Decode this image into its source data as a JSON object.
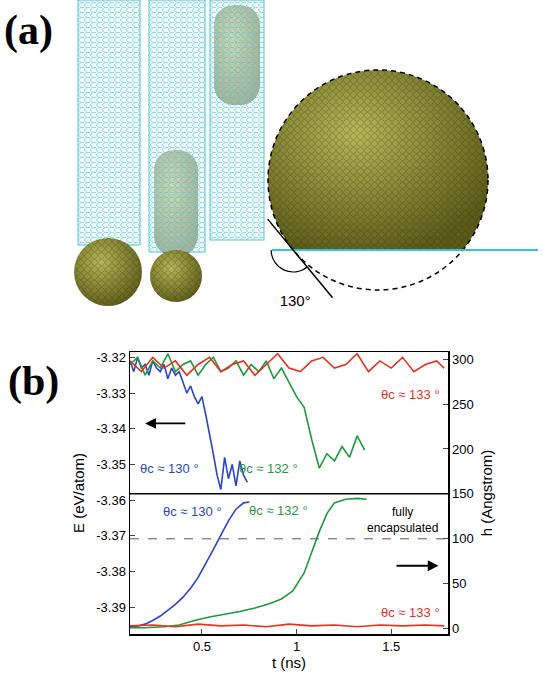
{
  "panel_a": {
    "label": "(a)",
    "angle_label": "130°"
  },
  "chart_data": {
    "type": "line",
    "panel_label": "(b)",
    "x_label": "t (ns)",
    "y_label": "E (eV/atom)",
    "y2_label": "h (Angstrom)",
    "xlim": [
      0.12,
      1.8
    ],
    "xticks": [
      0.5,
      1,
      1.5
    ],
    "ylim": [
      -3.3975,
      -3.3185
    ],
    "yticks": [
      -3.39,
      -3.38,
      -3.37,
      -3.36,
      -3.35,
      -3.34,
      -3.33,
      -3.32
    ],
    "y2lim": [
      -6,
      308
    ],
    "y2ticks": [
      0,
      50,
      100,
      150,
      200,
      250,
      300
    ],
    "grid": false,
    "threshold": {
      "text": "fully encapsulated",
      "value": 100,
      "axis": "y2",
      "line_style": "dash"
    },
    "series": [
      {
        "name": "θc ≈ 130 °",
        "color": "#2b45c8",
        "axis": "y",
        "x": [
          0.12,
          0.14,
          0.16,
          0.18,
          0.2,
          0.22,
          0.24,
          0.26,
          0.28,
          0.3,
          0.32,
          0.34,
          0.36,
          0.38,
          0.4,
          0.42,
          0.44,
          0.46,
          0.48,
          0.5,
          0.52,
          0.54,
          0.56,
          0.58,
          0.6,
          0.62,
          0.64,
          0.66,
          0.68,
          0.7,
          0.72,
          0.74
        ],
        "values": [
          -3.321,
          -3.324,
          -3.32,
          -3.323,
          -3.322,
          -3.325,
          -3.321,
          -3.323,
          -3.324,
          -3.322,
          -3.326,
          -3.323,
          -3.325,
          -3.324,
          -3.327,
          -3.33,
          -3.328,
          -3.331,
          -3.333,
          -3.331,
          -3.336,
          -3.341,
          -3.347,
          -3.353,
          -3.357,
          -3.348,
          -3.354,
          -3.35,
          -3.356,
          -3.349,
          -3.353,
          -3.355
        ]
      },
      {
        "name": "θc ≈ 132 °",
        "color": "#1f9a3a",
        "axis": "y",
        "x": [
          0.12,
          0.16,
          0.2,
          0.24,
          0.28,
          0.32,
          0.36,
          0.4,
          0.44,
          0.48,
          0.52,
          0.56,
          0.6,
          0.64,
          0.68,
          0.72,
          0.76,
          0.8,
          0.84,
          0.88,
          0.92,
          0.96,
          1.0,
          1.04,
          1.08,
          1.12,
          1.16,
          1.2,
          1.24,
          1.28,
          1.32,
          1.36
        ],
        "values": [
          -3.322,
          -3.32,
          -3.325,
          -3.321,
          -3.323,
          -3.319,
          -3.324,
          -3.322,
          -3.321,
          -3.325,
          -3.322,
          -3.32,
          -3.324,
          -3.323,
          -3.321,
          -3.325,
          -3.322,
          -3.324,
          -3.321,
          -3.326,
          -3.323,
          -3.327,
          -3.331,
          -3.334,
          -3.343,
          -3.351,
          -3.347,
          -3.349,
          -3.345,
          -3.348,
          -3.342,
          -3.346
        ]
      },
      {
        "name": "θc ≈ 133 °",
        "color": "#e8321e",
        "axis": "y",
        "x": [
          0.12,
          0.18,
          0.24,
          0.3,
          0.36,
          0.42,
          0.48,
          0.54,
          0.6,
          0.66,
          0.72,
          0.78,
          0.84,
          0.9,
          0.96,
          1.02,
          1.08,
          1.14,
          1.2,
          1.26,
          1.32,
          1.38,
          1.44,
          1.5,
          1.56,
          1.62,
          1.68,
          1.74,
          1.78
        ],
        "values": [
          -3.321,
          -3.324,
          -3.32,
          -3.323,
          -3.321,
          -3.325,
          -3.322,
          -3.32,
          -3.324,
          -3.322,
          -3.321,
          -3.325,
          -3.322,
          -3.319,
          -3.323,
          -3.324,
          -3.321,
          -3.32,
          -3.323,
          -3.322,
          -3.319,
          -3.324,
          -3.321,
          -3.323,
          -3.32,
          -3.324,
          -3.322,
          -3.321,
          -3.323
        ]
      },
      {
        "name": "θc ≈ 130 °",
        "color": "#2b45c8",
        "axis": "y2",
        "x": [
          0.12,
          0.16,
          0.2,
          0.24,
          0.28,
          0.32,
          0.36,
          0.4,
          0.44,
          0.48,
          0.52,
          0.56,
          0.6,
          0.64,
          0.68,
          0.72,
          0.75
        ],
        "values": [
          2,
          3,
          5,
          9,
          14,
          20,
          27,
          35,
          45,
          57,
          72,
          88,
          104,
          120,
          133,
          140,
          141
        ]
      },
      {
        "name": "θc ≈ 132 °",
        "color": "#1f9a3a",
        "axis": "y2",
        "x": [
          0.12,
          0.2,
          0.3,
          0.38,
          0.46,
          0.54,
          0.62,
          0.7,
          0.78,
          0.86,
          0.92,
          0.98,
          1.04,
          1.08,
          1.12,
          1.16,
          1.2,
          1.26,
          1.32,
          1.37
        ],
        "values": [
          1,
          1,
          2,
          4,
          9,
          13,
          16,
          19,
          23,
          28,
          33,
          42,
          62,
          85,
          108,
          128,
          140,
          144,
          145,
          144
        ]
      },
      {
        "name": "θc ≈ 133 °",
        "color": "#e8321e",
        "axis": "y2",
        "x": [
          0.12,
          0.24,
          0.36,
          0.48,
          0.6,
          0.72,
          0.84,
          0.96,
          1.08,
          1.2,
          1.32,
          1.44,
          1.56,
          1.68,
          1.78
        ],
        "values": [
          3,
          4,
          2,
          5,
          3,
          4,
          2,
          5,
          3,
          4,
          2,
          4,
          3,
          4,
          3
        ]
      }
    ]
  }
}
